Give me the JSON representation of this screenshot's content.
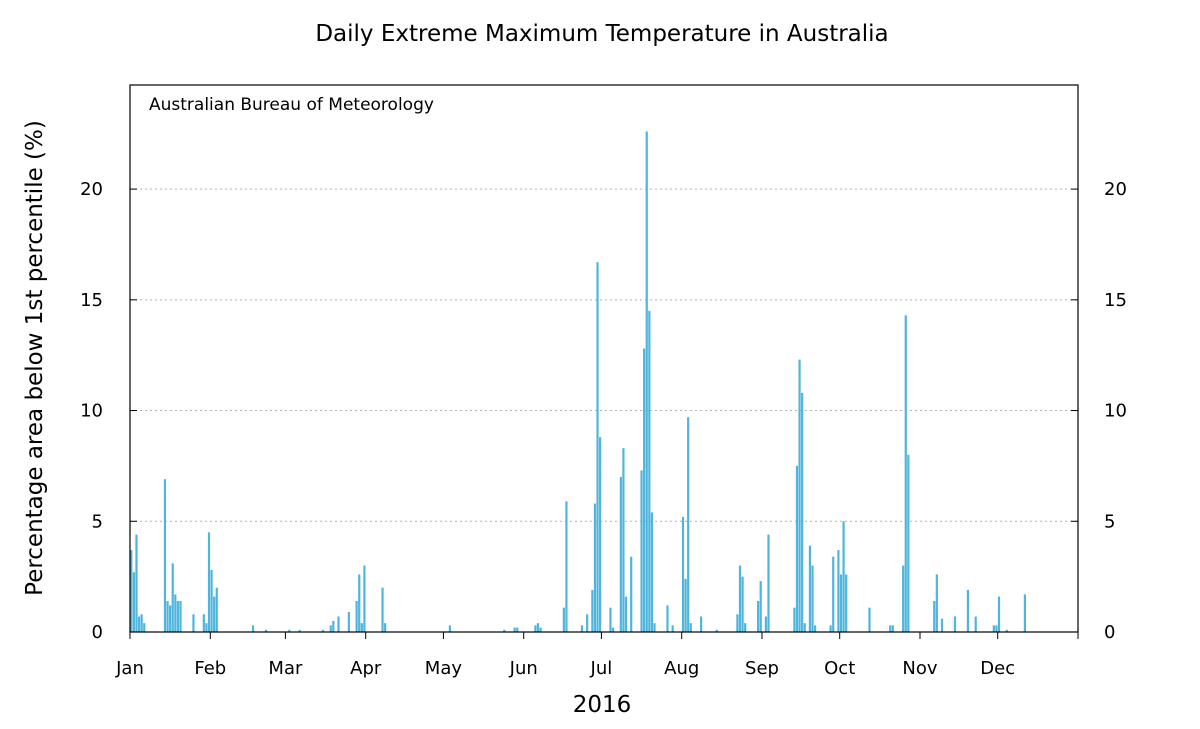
{
  "chart_data": {
    "type": "bar",
    "title": "Daily Extreme Maximum Temperature in Australia",
    "credit": "Australian Bureau of Meteorology",
    "xlabel": "2016",
    "ylabel": "Percentage area below 1st percentile (%)",
    "ylim": [
      0,
      24.7
    ],
    "yticks": [
      0,
      5,
      10,
      15,
      20
    ],
    "right_axis_ticks": true,
    "grid": "horizontal dotted",
    "color": "#4fb5dc",
    "x_domain_days": 366,
    "month_labels": [
      {
        "label": "Jan",
        "day": 1
      },
      {
        "label": "Feb",
        "day": 32
      },
      {
        "label": "Mar",
        "day": 61
      },
      {
        "label": "Apr",
        "day": 92
      },
      {
        "label": "May",
        "day": 122
      },
      {
        "label": "Jun",
        "day": 153
      },
      {
        "label": "Jul",
        "day": 183
      },
      {
        "label": "Aug",
        "day": 214
      },
      {
        "label": "Sep",
        "day": 245
      },
      {
        "label": "Oct",
        "day": 275
      },
      {
        "label": "Nov",
        "day": 306
      },
      {
        "label": "Dec",
        "day": 336
      }
    ],
    "series": [
      {
        "values": [
          [
            1,
            3.7
          ],
          [
            2,
            2.7
          ],
          [
            3,
            4.4
          ],
          [
            4,
            0.7
          ],
          [
            5,
            0.8
          ],
          [
            6,
            0.4
          ],
          [
            14,
            6.9
          ],
          [
            15,
            1.4
          ],
          [
            16,
            1.2
          ],
          [
            17,
            3.1
          ],
          [
            18,
            1.7
          ],
          [
            19,
            1.4
          ],
          [
            20,
            1.4
          ],
          [
            25,
            0.8
          ],
          [
            29,
            0.8
          ],
          [
            30,
            0.4
          ],
          [
            31,
            4.5
          ],
          [
            32,
            2.8
          ],
          [
            33,
            1.6
          ],
          [
            34,
            2.0
          ],
          [
            48,
            0.3
          ],
          [
            53,
            0.1
          ],
          [
            62,
            0.1
          ],
          [
            66,
            0.1
          ],
          [
            75,
            0.1
          ],
          [
            78,
            0.3
          ],
          [
            79,
            0.5
          ],
          [
            81,
            0.7
          ],
          [
            85,
            0.9
          ],
          [
            88,
            1.4
          ],
          [
            89,
            2.6
          ],
          [
            90,
            0.4
          ],
          [
            91,
            3.0
          ],
          [
            98,
            2.0
          ],
          [
            99,
            0.4
          ],
          [
            124,
            0.3
          ],
          [
            145,
            0.1
          ],
          [
            149,
            0.2
          ],
          [
            150,
            0.2
          ],
          [
            157,
            0.3
          ],
          [
            158,
            0.4
          ],
          [
            159,
            0.2
          ],
          [
            168,
            1.1
          ],
          [
            169,
            5.9
          ],
          [
            175,
            0.3
          ],
          [
            177,
            0.8
          ],
          [
            179,
            1.9
          ],
          [
            180,
            5.8
          ],
          [
            181,
            16.7
          ],
          [
            182,
            8.8
          ],
          [
            186,
            1.1
          ],
          [
            187,
            0.2
          ],
          [
            190,
            7.0
          ],
          [
            191,
            8.3
          ],
          [
            192,
            1.6
          ],
          [
            194,
            3.4
          ],
          [
            198,
            7.3
          ],
          [
            199,
            12.8
          ],
          [
            200,
            22.6
          ],
          [
            201,
            14.5
          ],
          [
            202,
            5.4
          ],
          [
            203,
            0.4
          ],
          [
            208,
            1.2
          ],
          [
            210,
            0.3
          ],
          [
            214,
            5.2
          ],
          [
            215,
            2.4
          ],
          [
            216,
            9.7
          ],
          [
            217,
            0.4
          ],
          [
            221,
            0.7
          ],
          [
            227,
            0.1
          ],
          [
            235,
            0.8
          ],
          [
            236,
            3.0
          ],
          [
            237,
            2.5
          ],
          [
            238,
            0.4
          ],
          [
            243,
            1.4
          ],
          [
            244,
            2.3
          ],
          [
            246,
            0.7
          ],
          [
            247,
            4.4
          ],
          [
            257,
            1.1
          ],
          [
            258,
            7.5
          ],
          [
            259,
            12.3
          ],
          [
            260,
            10.8
          ],
          [
            261,
            0.4
          ],
          [
            263,
            3.9
          ],
          [
            264,
            3.0
          ],
          [
            265,
            0.3
          ],
          [
            271,
            0.3
          ],
          [
            272,
            3.4
          ],
          [
            274,
            3.7
          ],
          [
            275,
            2.6
          ],
          [
            276,
            5.0
          ],
          [
            277,
            2.6
          ],
          [
            286,
            1.1
          ],
          [
            294,
            0.3
          ],
          [
            295,
            0.3
          ],
          [
            299,
            3.0
          ],
          [
            300,
            14.3
          ],
          [
            301,
            8.0
          ],
          [
            311,
            1.4
          ],
          [
            312,
            2.6
          ],
          [
            314,
            0.6
          ],
          [
            319,
            0.7
          ],
          [
            324,
            1.9
          ],
          [
            327,
            0.7
          ],
          [
            334,
            0.3
          ],
          [
            335,
            0.3
          ],
          [
            336,
            1.6
          ],
          [
            339,
            0.1
          ],
          [
            346,
            1.7
          ]
        ]
      }
    ]
  }
}
